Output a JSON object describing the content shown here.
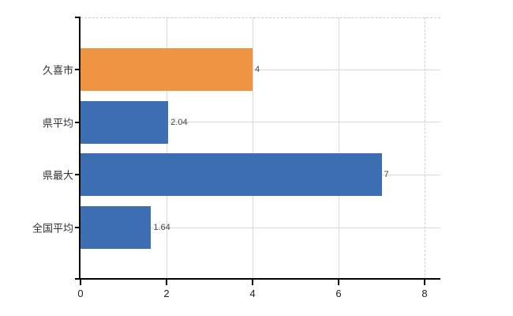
{
  "chart_data": {
    "type": "bar",
    "orientation": "horizontal",
    "title": "",
    "xlabel": "",
    "ylabel": "",
    "categories": [
      "久喜市",
      "県平均",
      "県最大",
      "全国平均"
    ],
    "values": [
      4,
      2.04,
      7,
      1.64
    ],
    "value_labels": [
      "4",
      "2.04",
      "7",
      "1.64"
    ],
    "bar_colors": [
      "#ef9440",
      "#3e6eb2",
      "#3e6eb2",
      "#3e6eb2"
    ],
    "x_ticks": [
      0,
      2,
      4,
      6,
      8
    ],
    "x_tick_labels": [
      "0",
      "2",
      "4",
      "6",
      "8"
    ],
    "xlim": [
      0,
      8.4
    ],
    "grid": true,
    "legend": false
  },
  "colors": {
    "background": "#ffffff",
    "bar_orange": "#ef9440",
    "bar_blue": "#3e6eb2",
    "grid": "#d9d9d9",
    "top_border_dashed": "#cccccc",
    "axis": "#000000",
    "value_label": "#444444",
    "category_label": "#333333",
    "tick_label": "#222222"
  }
}
